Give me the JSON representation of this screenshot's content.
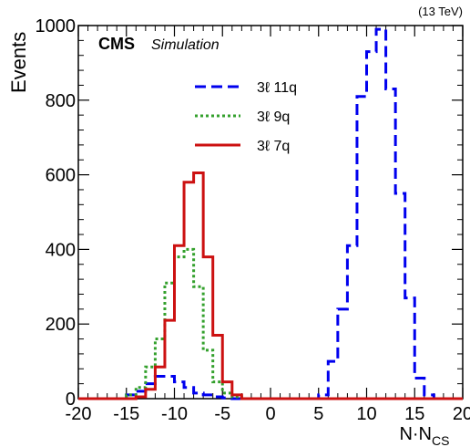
{
  "chart_data": {
    "type": "line",
    "title": "",
    "energy_label": "(13 TeV)",
    "experiment_label": "CMS",
    "status_label": "Simulation",
    "xlabel": "N·N",
    "xlabel_subscript": "CS",
    "ylabel": "Events",
    "xlim": [
      -20,
      20
    ],
    "ylim": [
      0,
      1000
    ],
    "x_ticks": [
      -20,
      -15,
      -10,
      -5,
      0,
      5,
      10,
      15,
      20
    ],
    "y_ticks": [
      0,
      200,
      400,
      600,
      800,
      1000
    ],
    "grid": false,
    "legend_position": "top-left",
    "bin_edges": [
      -20,
      -19,
      -18,
      -17,
      -16,
      -15,
      -14,
      -13,
      -12,
      -11,
      -10,
      -9,
      -8,
      -7,
      -6,
      -5,
      -4,
      -3,
      -2,
      -1,
      0,
      1,
      2,
      3,
      4,
      5,
      6,
      7,
      8,
      9,
      10,
      11,
      12,
      13,
      14,
      15,
      16,
      17,
      18,
      19,
      20
    ],
    "series": [
      {
        "name": "3ℓ 11q",
        "color": "#0000ee",
        "style": "dashed",
        "values": [
          0,
          0,
          0,
          0,
          0,
          10,
          20,
          40,
          60,
          60,
          45,
          30,
          15,
          10,
          5,
          2,
          0,
          0,
          0,
          0,
          0,
          0,
          0,
          0,
          0,
          10,
          100,
          240,
          410,
          810,
          930,
          990,
          830,
          550,
          270,
          55,
          10,
          0,
          0,
          0
        ]
      },
      {
        "name": "3ℓ 9q",
        "color": "#33a02c",
        "style": "dotted",
        "values": [
          0,
          0,
          0,
          0,
          0,
          10,
          30,
          85,
          160,
          310,
          380,
          400,
          300,
          130,
          45,
          15,
          5,
          0,
          0,
          0,
          0,
          0,
          0,
          0,
          0,
          0,
          0,
          0,
          0,
          0,
          0,
          0,
          0,
          0,
          0,
          0,
          0,
          0,
          0,
          0
        ]
      },
      {
        "name": "3ℓ 7q",
        "color": "#cc1111",
        "style": "solid",
        "values": [
          0,
          0,
          0,
          0,
          0,
          0,
          5,
          25,
          85,
          210,
          410,
          580,
          605,
          380,
          170,
          45,
          10,
          0,
          0,
          0,
          0,
          0,
          0,
          0,
          0,
          0,
          0,
          0,
          0,
          0,
          0,
          0,
          0,
          0,
          0,
          0,
          0,
          0,
          0,
          0
        ]
      }
    ]
  }
}
